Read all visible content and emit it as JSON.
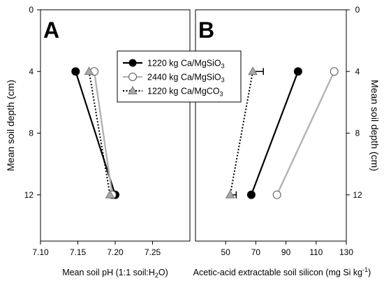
{
  "chart_data": [
    {
      "type": "line",
      "panel_label": "A",
      "xlabel": "Mean soil pH (1:1 soil:H2O)",
      "ylabel": "Mean soil depth (cm)",
      "xlim": [
        7.1,
        7.3
      ],
      "ylim": [
        0,
        15
      ],
      "y_inverted": true,
      "x_ticks": [
        "7.10",
        "7.15",
        "7.20",
        "7.25"
      ],
      "y_ticks": [
        "0",
        "4",
        "8",
        "12"
      ],
      "series": [
        {
          "name": "1220 kg Ca/MgSiO3",
          "style": "solid-black-filled-circle",
          "points": [
            {
              "x": 7.147,
              "y": 4
            },
            {
              "x": 7.2,
              "y": 12
            }
          ]
        },
        {
          "name": "2440 kg Ca/MgSiO3",
          "style": "solid-gray-open-circle",
          "points": [
            {
              "x": 7.172,
              "y": 4
            },
            {
              "x": 7.196,
              "y": 12
            }
          ]
        },
        {
          "name": "1220 kg Ca/MgCO3",
          "style": "dotted-black-gray-triangle",
          "points": [
            {
              "x": 7.165,
              "y": 4
            },
            {
              "x": 7.193,
              "y": 12
            }
          ]
        }
      ]
    },
    {
      "type": "line",
      "panel_label": "B",
      "xlabel": "Acetic-acid extractable soil silicon (mg Si kg-1)",
      "ylabel": "Mean soil depth (cm)",
      "xlim": [
        30,
        130
      ],
      "ylim": [
        0,
        15
      ],
      "y_inverted": true,
      "x_ticks": [
        "50",
        "70",
        "90",
        "110",
        "130"
      ],
      "y_ticks": [
        "0",
        "4",
        "8",
        "12"
      ],
      "series": [
        {
          "name": "1220 kg Ca/MgSiO3",
          "style": "solid-black-filled-circle",
          "points": [
            {
              "x": 98,
              "y": 4
            },
            {
              "x": 67,
              "y": 12
            }
          ]
        },
        {
          "name": "2440 kg Ca/MgSiO3",
          "style": "solid-gray-open-circle",
          "points": [
            {
              "x": 122,
              "y": 4
            },
            {
              "x": 84,
              "y": 12
            }
          ]
        },
        {
          "name": "1220 kg Ca/MgCO3",
          "style": "dotted-black-gray-triangle",
          "points": [
            {
              "x": 68,
              "y": 4,
              "err_plus": 7
            },
            {
              "x": 53,
              "y": 12,
              "err_plus": 4
            }
          ]
        }
      ]
    }
  ],
  "colors": {
    "black": "#000000",
    "gray": "#b3b3b3",
    "triangle_fill": "#a8a8a8"
  }
}
